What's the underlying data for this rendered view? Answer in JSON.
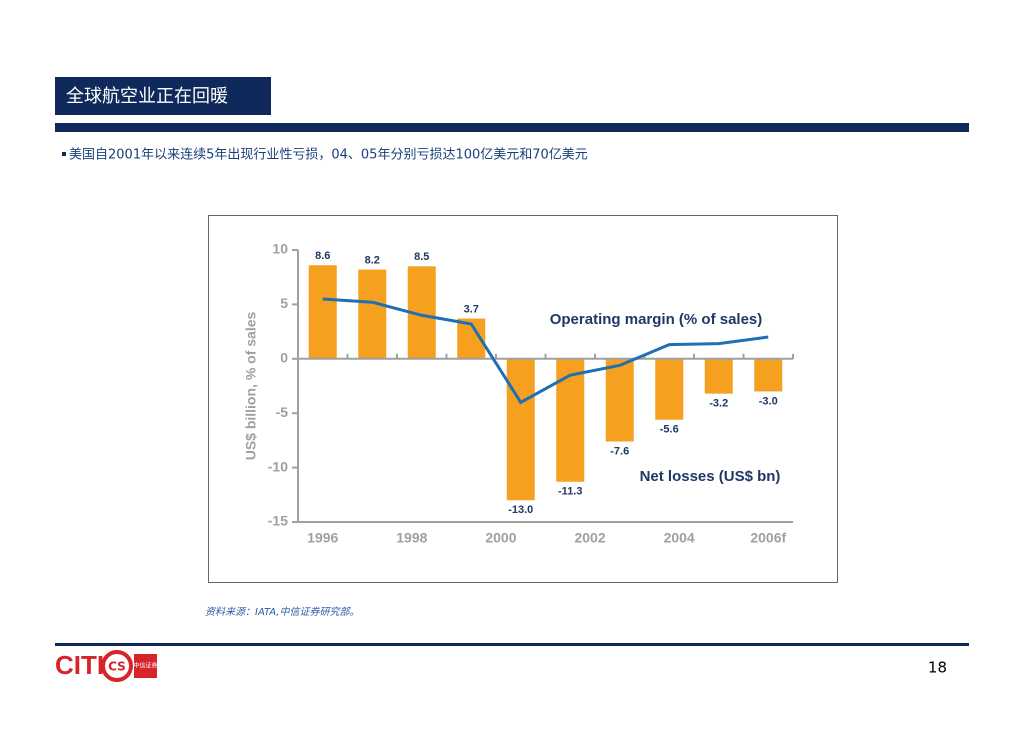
{
  "header": {
    "title": "全球航空业正在回暖"
  },
  "bullet": "美国自2001年以来连续5年出现行业性亏损，04、05年分别亏损达100亿美元和70亿美元",
  "source": "资料来源：IATA,中信证券研究部。",
  "logo": {
    "text": "CITI",
    "circle": "CS",
    "chinese": "中信证券"
  },
  "page_number": "18",
  "chart_data": {
    "type": "bar_line",
    "y_label": "US$ billion, % of sales",
    "annotations": [
      "Operating margin (% of sales)",
      "Net losses (US$ bn)"
    ],
    "xtick_labels": [
      "1996",
      "1998",
      "2000",
      "2002",
      "2004",
      "2006f"
    ],
    "series": [
      {
        "name": "Net losses (US$ bn)",
        "color": "#f5a01f",
        "values": [
          8.6,
          8.2,
          8.5,
          3.7,
          -13,
          -11.3,
          -7.6,
          -5.6,
          -3.2,
          -3
        ],
        "value_labels": [
          "8.6",
          "8.2",
          "8.5",
          "3.7",
          "-13.0",
          "-11.3",
          "-7.6",
          "-5.6",
          "-3.2",
          "-3.0"
        ]
      },
      {
        "name": "Operating margin (% of sales)",
        "color": "#1f6fb5",
        "values": [
          5.5,
          5.2,
          4,
          3.2,
          -4,
          -1.5,
          -0.6,
          1.3,
          1.4,
          2
        ]
      }
    ],
    "ylim": [
      -15,
      10
    ],
    "yticks": [
      -15,
      -10,
      -5,
      0,
      5,
      10
    ]
  }
}
